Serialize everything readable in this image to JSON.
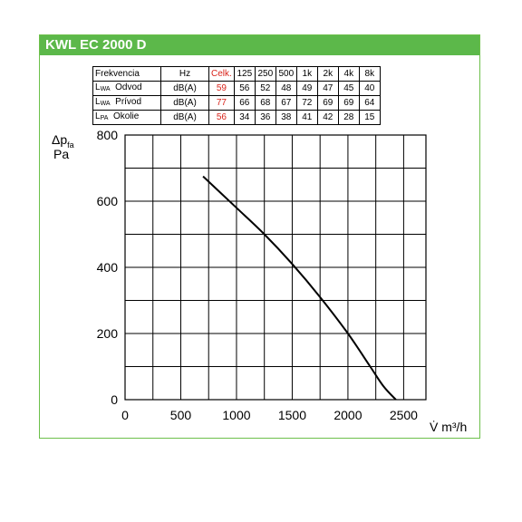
{
  "title": "KWL EC 2000 D",
  "noise_table": {
    "headers": [
      "Frekvencia",
      "Hz",
      "Celk.",
      "125",
      "250",
      "500",
      "1k",
      "2k",
      "4k",
      "8k"
    ],
    "rows": [
      {
        "symbol": "L",
        "sub": "WA",
        "name": "Odvod",
        "unit": "dB(A)",
        "total": "59",
        "values": [
          "56",
          "52",
          "48",
          "49",
          "47",
          "45",
          "40"
        ]
      },
      {
        "symbol": "L",
        "sub": "WA",
        "name": "Prívod",
        "unit": "dB(A)",
        "total": "77",
        "values": [
          "66",
          "68",
          "67",
          "72",
          "69",
          "69",
          "64"
        ]
      },
      {
        "symbol": "L",
        "sub": "PA",
        "name": "Okolie",
        "unit": "dB(A)",
        "total": "56",
        "values": [
          "34",
          "36",
          "38",
          "41",
          "42",
          "28",
          "15"
        ]
      }
    ]
  },
  "chart_data": {
    "type": "line",
    "ylabel_symbol": "Δp",
    "ylabel_sub": "fa",
    "ylabel_unit": "Pa",
    "xlabel": "V̇ m³/h",
    "xlim": [
      0,
      2500
    ],
    "ylim": [
      0,
      800
    ],
    "xticks": [
      "0",
      "500",
      "1000",
      "1500",
      "2000",
      "2500"
    ],
    "yticks": [
      "0",
      "200",
      "400",
      "600",
      "800"
    ],
    "grid": true,
    "series": [
      {
        "x": [
          700,
          1000,
          1250,
          1500,
          1750,
          2000,
          2200,
          2320,
          2430
        ],
        "values": [
          675,
          580,
          500,
          410,
          310,
          200,
          100,
          40,
          0
        ]
      }
    ],
    "colors": {
      "line": "#000000",
      "accent": "#5cb84a",
      "highlight": "#d9241b"
    }
  }
}
